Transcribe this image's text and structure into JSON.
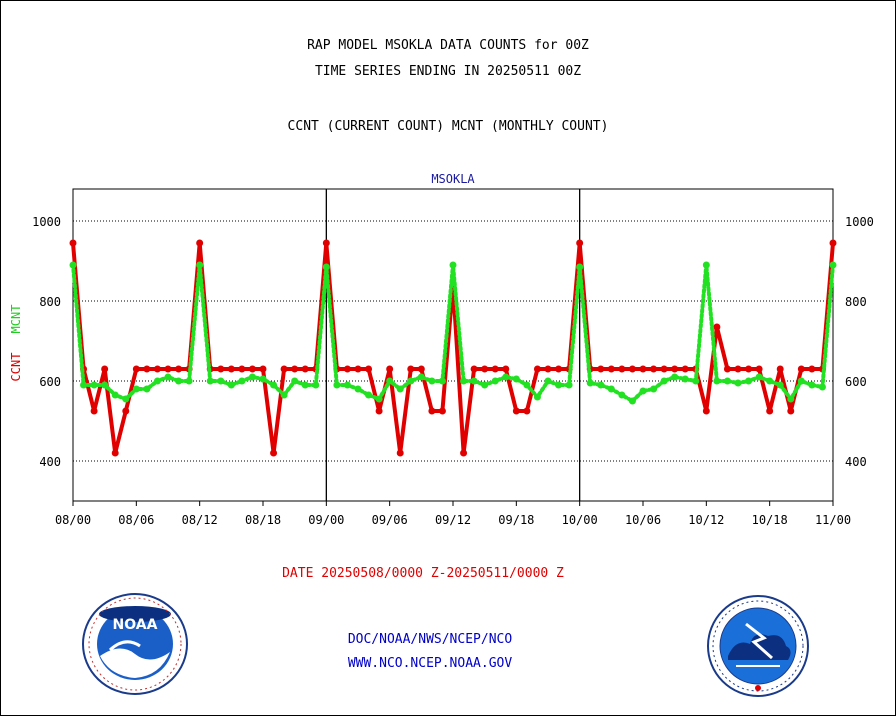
{
  "chart_data": {
    "type": "line",
    "title": "RAP MODEL MSOKLA DATA COUNTS for 00Z",
    "subtitle": "TIME SERIES ENDING IN 20250511 00Z",
    "legend_text": "CCNT (CURRENT COUNT) MCNT (MONTHLY COUNT)",
    "station": "MSOKLA",
    "ylabel_left": [
      "CCNT",
      "MCNT"
    ],
    "ylim": [
      300,
      1080
    ],
    "yticks": [
      "400",
      "600",
      "800",
      "1000"
    ],
    "x_range": [
      0,
      72
    ],
    "xtick_labels": [
      "08/00",
      "08/06",
      "08/12",
      "08/18",
      "09/00",
      "09/06",
      "09/12",
      "09/18",
      "10/00",
      "10/06",
      "10/12",
      "10/18",
      "11/00"
    ],
    "grid": true,
    "series": [
      {
        "name": "CCNT",
        "color": "#e00000",
        "values": [
          945,
          630,
          525,
          630,
          420,
          525,
          630,
          630,
          630,
          630,
          630,
          630,
          945,
          630,
          630,
          630,
          630,
          630,
          630,
          420,
          630,
          630,
          630,
          630,
          945,
          630,
          630,
          630,
          630,
          525,
          630,
          420,
          630,
          630,
          525,
          525,
          840,
          420,
          630,
          630,
          630,
          630,
          525,
          525,
          630,
          630,
          630,
          630,
          945,
          630,
          630,
          630,
          630,
          630,
          630,
          630,
          630,
          630,
          630,
          630,
          525,
          735,
          630,
          630,
          630,
          630,
          525,
          630,
          525,
          630,
          630,
          630,
          945
        ]
      },
      {
        "name": "MCNT",
        "color": "#22e022",
        "values": [
          890,
          590,
          590,
          590,
          565,
          555,
          580,
          580,
          600,
          610,
          600,
          600,
          890,
          600,
          600,
          590,
          600,
          610,
          605,
          590,
          565,
          600,
          590,
          590,
          885,
          590,
          590,
          580,
          565,
          555,
          600,
          580,
          600,
          610,
          600,
          600,
          890,
          600,
          600,
          590,
          600,
          610,
          605,
          590,
          560,
          600,
          590,
          590,
          885,
          595,
          590,
          580,
          565,
          550,
          575,
          580,
          600,
          610,
          605,
          600,
          890,
          600,
          600,
          595,
          600,
          610,
          600,
          590,
          555,
          600,
          590,
          585,
          890
        ]
      }
    ]
  },
  "footer": {
    "date_range": "DATE 20250508/0000 Z-20250511/0000 Z",
    "link1": "DOC/NOAA/NWS/NCEP/NCO",
    "link2": "WWW.NCO.NCEP.NOAA.GOV"
  },
  "logos": {
    "left_icon": "noaa-logo-icon",
    "left_text": "NOAA",
    "right_icon": "nws-logo-icon",
    "right_text": "NATIONAL WEATHER SERVICE"
  }
}
